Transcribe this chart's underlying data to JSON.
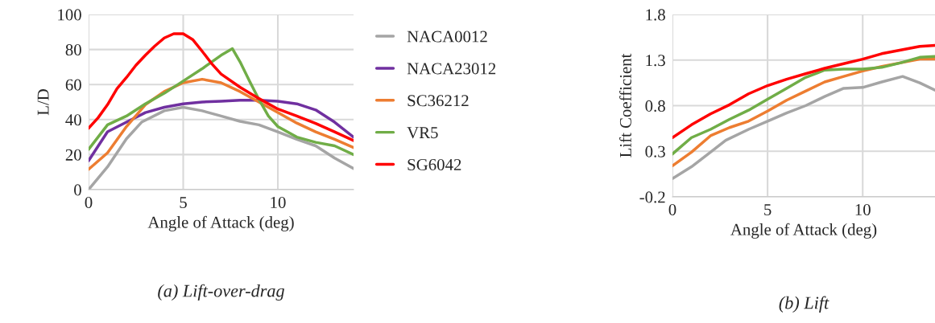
{
  "chart_data": [
    {
      "type": "line",
      "title": "(a) Lift-over-drag",
      "xlabel": "Angle of Attack (deg)",
      "ylabel": "L/D",
      "xlim": [
        0,
        14
      ],
      "xticks": [
        0,
        5,
        10
      ],
      "ylim": [
        0,
        100
      ],
      "yticks": [
        0,
        20,
        40,
        60,
        80,
        100
      ],
      "grid": true,
      "legend": "right",
      "line_style": "solid",
      "marker": "none",
      "series": [
        {
          "name": "NACA0012",
          "color": "#a5a5a5",
          "x": [
            0,
            1,
            2,
            2.8,
            4,
            5,
            6,
            7,
            8,
            9,
            10,
            11,
            12,
            13,
            14
          ],
          "values": [
            0,
            13,
            29,
            38.5,
            45,
            47,
            45,
            42,
            39,
            37,
            33,
            28.7,
            25,
            18,
            12
          ]
        },
        {
          "name": "NACA23012",
          "color": "#7030a0",
          "x": [
            0,
            1,
            2,
            3,
            4,
            5,
            6,
            7,
            8,
            9,
            10,
            11,
            12,
            13,
            14
          ],
          "values": [
            16.5,
            33,
            38.5,
            44,
            47,
            49,
            50,
            50.5,
            51,
            51,
            50.5,
            49,
            45.5,
            38.5,
            30
          ]
        },
        {
          "name": "SC36212",
          "color": "#ed7d31",
          "x": [
            0,
            1,
            2,
            3,
            4,
            5,
            6,
            7,
            8,
            9,
            10,
            11,
            12,
            13,
            14
          ],
          "values": [
            11.6,
            21,
            36,
            48.5,
            56,
            61,
            63,
            61,
            56,
            50,
            44,
            38,
            33,
            28.7,
            24
          ]
        },
        {
          "name": "VR5",
          "color": "#70ad47",
          "x": [
            0,
            1,
            2,
            3,
            4,
            5,
            6,
            7,
            7.6,
            8,
            8.5,
            9,
            9.5,
            10,
            11,
            12,
            13,
            14
          ],
          "values": [
            23,
            37,
            42,
            49,
            55,
            62,
            69,
            76.7,
            80.5,
            73,
            62,
            51.5,
            42,
            36,
            30,
            27,
            25,
            20
          ]
        },
        {
          "name": "SG6042",
          "color": "#ff0000",
          "x": [
            0,
            0.5,
            1,
            1.5,
            2,
            2.5,
            3,
            3.5,
            4,
            4.5,
            5,
            5.5,
            6,
            6.5,
            7,
            8,
            9,
            10,
            11,
            12,
            13,
            14
          ],
          "values": [
            35,
            41,
            48.5,
            57.6,
            64,
            71,
            76.7,
            82,
            86.6,
            89,
            89,
            85.7,
            79,
            72,
            66,
            58.5,
            52,
            46,
            42,
            37.8,
            33,
            28
          ]
        }
      ]
    },
    {
      "type": "line",
      "title": "(b) Lift",
      "xlabel": "Angle of Attack (deg)",
      "ylabel": "Lift Coefficient",
      "xlim": [
        0,
        13.8
      ],
      "xticks": [
        0,
        5,
        10
      ],
      "ylim": [
        -0.2,
        1.8
      ],
      "yticks": [
        {
          "value": -0.2,
          "label": "-0.2"
        },
        0.3,
        0.8,
        1.3,
        1.8
      ],
      "grid": true,
      "legend": false,
      "line_style": "solid",
      "marker": "none",
      "series": [
        {
          "color": "#a5a5a5",
          "x": [
            0,
            1,
            2,
            2.8,
            4,
            5,
            6,
            7,
            8,
            9,
            10,
            11,
            12.1,
            13,
            13.8
          ],
          "values": [
            0,
            0.13,
            0.29,
            0.42,
            0.54,
            0.63,
            0.72,
            0.8,
            0.9,
            0.99,
            1.0,
            1.06,
            1.12,
            1.05,
            0.97
          ]
        },
        {
          "color": "#ed7d31",
          "x": [
            0,
            1,
            2,
            3,
            4,
            5,
            6,
            7,
            8,
            9,
            10,
            11,
            12,
            13,
            13.8
          ],
          "values": [
            0.14,
            0.29,
            0.47,
            0.56,
            0.63,
            0.74,
            0.86,
            0.96,
            1.06,
            1.12,
            1.18,
            1.23,
            1.27,
            1.31,
            1.31
          ]
        },
        {
          "color": "#70ad47",
          "x": [
            0,
            1,
            2,
            3,
            4,
            5,
            6,
            7,
            8,
            9,
            10,
            11,
            12,
            13,
            13.8
          ],
          "values": [
            0.27,
            0.45,
            0.54,
            0.65,
            0.75,
            0.87,
            0.99,
            1.11,
            1.19,
            1.2,
            1.2,
            1.22,
            1.27,
            1.33,
            1.34
          ]
        },
        {
          "color": "#ff0000",
          "x": [
            0,
            1,
            2,
            3,
            4,
            5,
            6,
            7,
            8,
            9,
            10,
            11,
            12,
            13,
            13.8
          ],
          "values": [
            0.45,
            0.59,
            0.71,
            0.81,
            0.93,
            1.02,
            1.09,
            1.15,
            1.21,
            1.26,
            1.31,
            1.37,
            1.41,
            1.45,
            1.46
          ]
        }
      ]
    }
  ]
}
